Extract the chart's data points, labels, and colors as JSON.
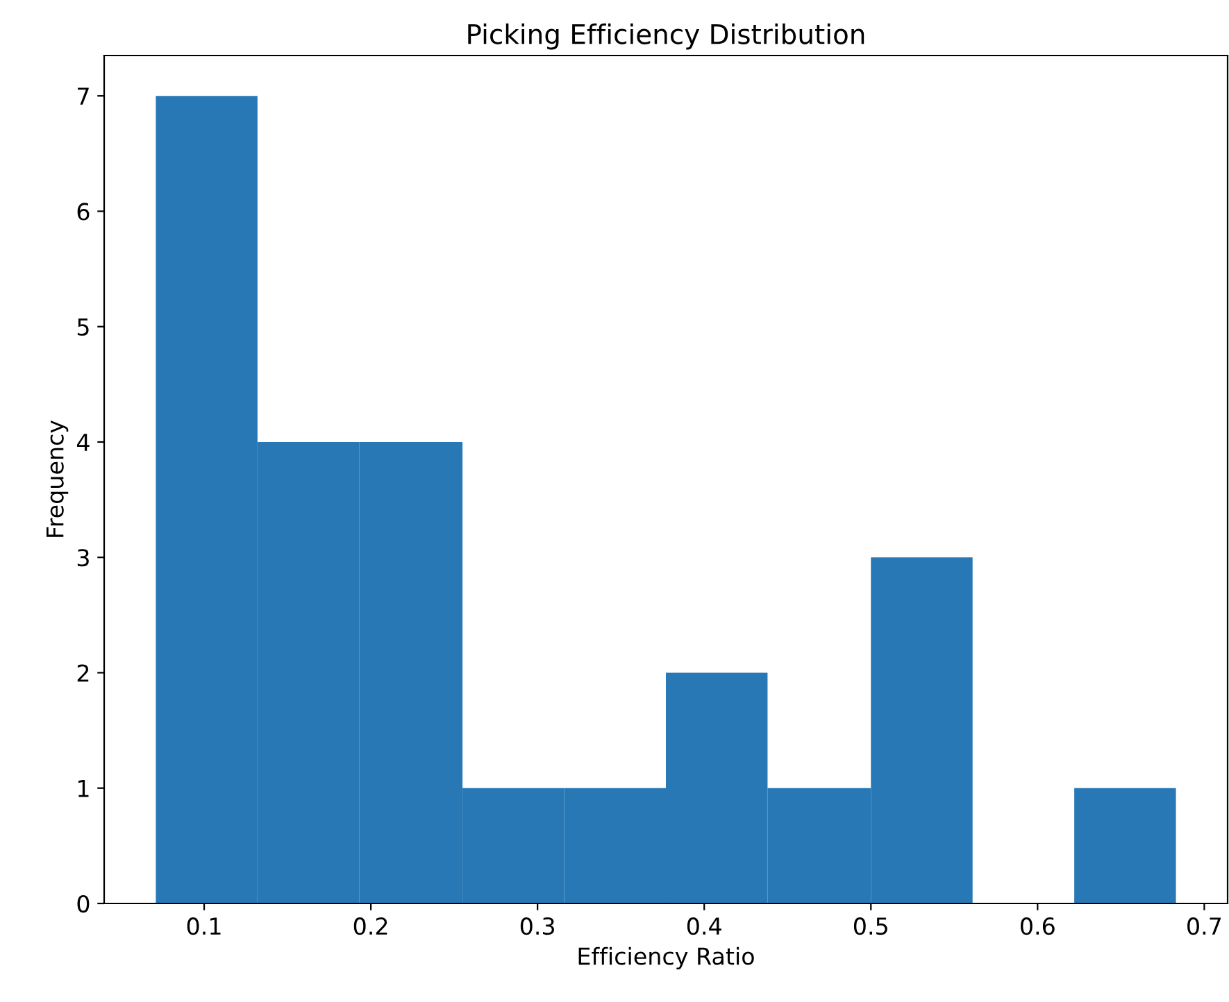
{
  "chart_data": {
    "type": "histogram",
    "title": "Picking Efficiency Distribution",
    "xlabel": "Efficiency Ratio",
    "ylabel": "Frequency",
    "bins": [
      0.071,
      0.132,
      0.193,
      0.255,
      0.316,
      0.377,
      0.438,
      0.5,
      0.561,
      0.622,
      0.683
    ],
    "values": [
      7,
      4,
      4,
      1,
      1,
      2,
      1,
      3,
      0,
      1
    ],
    "color": "#2878b5",
    "xlim": [
      0.04,
      0.714
    ],
    "xticks": [
      0.1,
      0.2,
      0.3,
      0.4,
      0.5,
      0.6,
      0.7
    ],
    "ylim": [
      0,
      7.35
    ],
    "yticks": [
      0,
      1,
      2,
      3,
      4,
      5,
      6,
      7
    ],
    "grid": false
  }
}
